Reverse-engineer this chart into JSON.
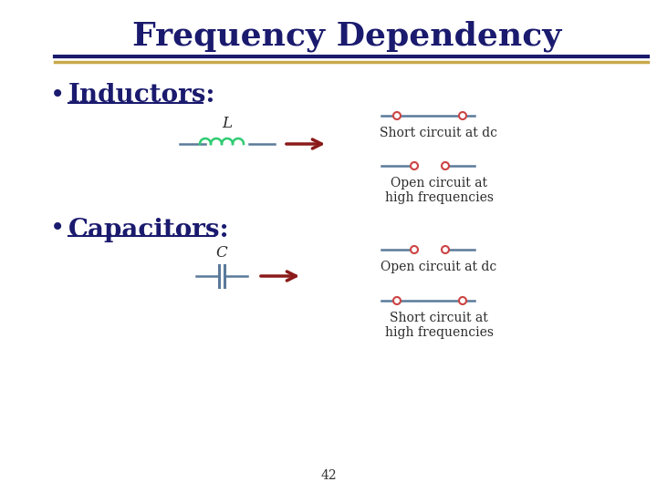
{
  "title": "Frequency Dependency",
  "title_color": "#1a1a6e",
  "title_fontsize": 26,
  "bg_color": "#ffffff",
  "header_line1_color": "#1a1a6e",
  "header_line2_color": "#c8a84b",
  "bullet_color": "#1a1a6e",
  "bullet_fontsize": 20,
  "inductors_label": "Inductors",
  "capacitors_label": "Capacitors",
  "circuit_line_color": "#5a7a9a",
  "coil_color": "#2ecc71",
  "arrow_color": "#8b1a1a",
  "open_circle_color": "#cc4444",
  "short_line_color": "#5a7a9a",
  "annotation_color": "#2a2a2a",
  "annotation_fontsize": 10,
  "label_fontsize": 12,
  "page_number": "42"
}
